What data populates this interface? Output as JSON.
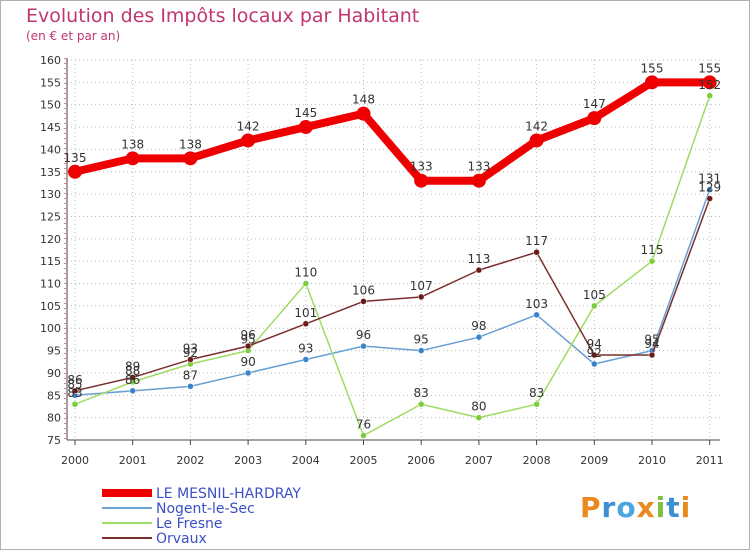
{
  "title": "Evolution des Impôts locaux par Habitant",
  "subtitle": "(en € et par an)",
  "logo": "Proxiti",
  "colors": {
    "title": "#c0366f",
    "legend_text": "#3a4fc4",
    "grid": "#bbbbbb",
    "axis_red": "#cc0000"
  },
  "chart_data": {
    "type": "line",
    "x": [
      2000,
      2001,
      2002,
      2003,
      2004,
      2005,
      2006,
      2007,
      2008,
      2009,
      2010,
      2011
    ],
    "ylim": [
      75,
      160
    ],
    "yticks": [
      75,
      80,
      85,
      90,
      95,
      100,
      105,
      110,
      115,
      120,
      125,
      130,
      135,
      140,
      145,
      150,
      155,
      160
    ],
    "grid": true,
    "legend_position": "bottom-left",
    "series": [
      {
        "name": "LE MESNIL-HARDRAY",
        "color": "#ee0000",
        "marker_color": "#ee0000",
        "width": 8,
        "values": [
          135,
          138,
          138,
          142,
          145,
          148,
          133,
          133,
          142,
          147,
          155,
          155
        ],
        "labels": [
          "135",
          "138",
          "138",
          "142",
          "145",
          "148",
          "133",
          "133",
          "142",
          "147",
          "155",
          "155"
        ]
      },
      {
        "name": "Nogent-le-Sec",
        "color": "#6a9fd4",
        "marker_color": "#3c84c9",
        "width": 1.5,
        "values": [
          85,
          86,
          87,
          90,
          93,
          96,
          95,
          98,
          103,
          92,
          95,
          131
        ],
        "labels": [
          "85",
          "86",
          "87",
          "90",
          "93",
          "96",
          "95",
          "98",
          "103",
          "92",
          "95",
          "131"
        ]
      },
      {
        "name": "Le Fresne",
        "color": "#9edc63",
        "marker_color": "#7ccc3c",
        "width": 1.5,
        "values": [
          83,
          88,
          92,
          95,
          110,
          76,
          83,
          80,
          83,
          105,
          115,
          152
        ],
        "labels": [
          "83",
          "88",
          "92",
          "95",
          "110",
          "76",
          "83",
          "80",
          "83",
          "105",
          "115",
          "152"
        ]
      },
      {
        "name": "Orvaux",
        "color": "#7a2e2e",
        "marker_color": "#6a1c1c",
        "width": 1.5,
        "values": [
          86,
          89,
          93,
          96,
          101,
          106,
          107,
          113,
          117,
          94,
          94,
          129
        ],
        "labels": [
          "86",
          "89",
          "93",
          "96",
          "101",
          "106",
          "107",
          "113",
          "117",
          "94",
          "94",
          "129"
        ]
      }
    ]
  }
}
